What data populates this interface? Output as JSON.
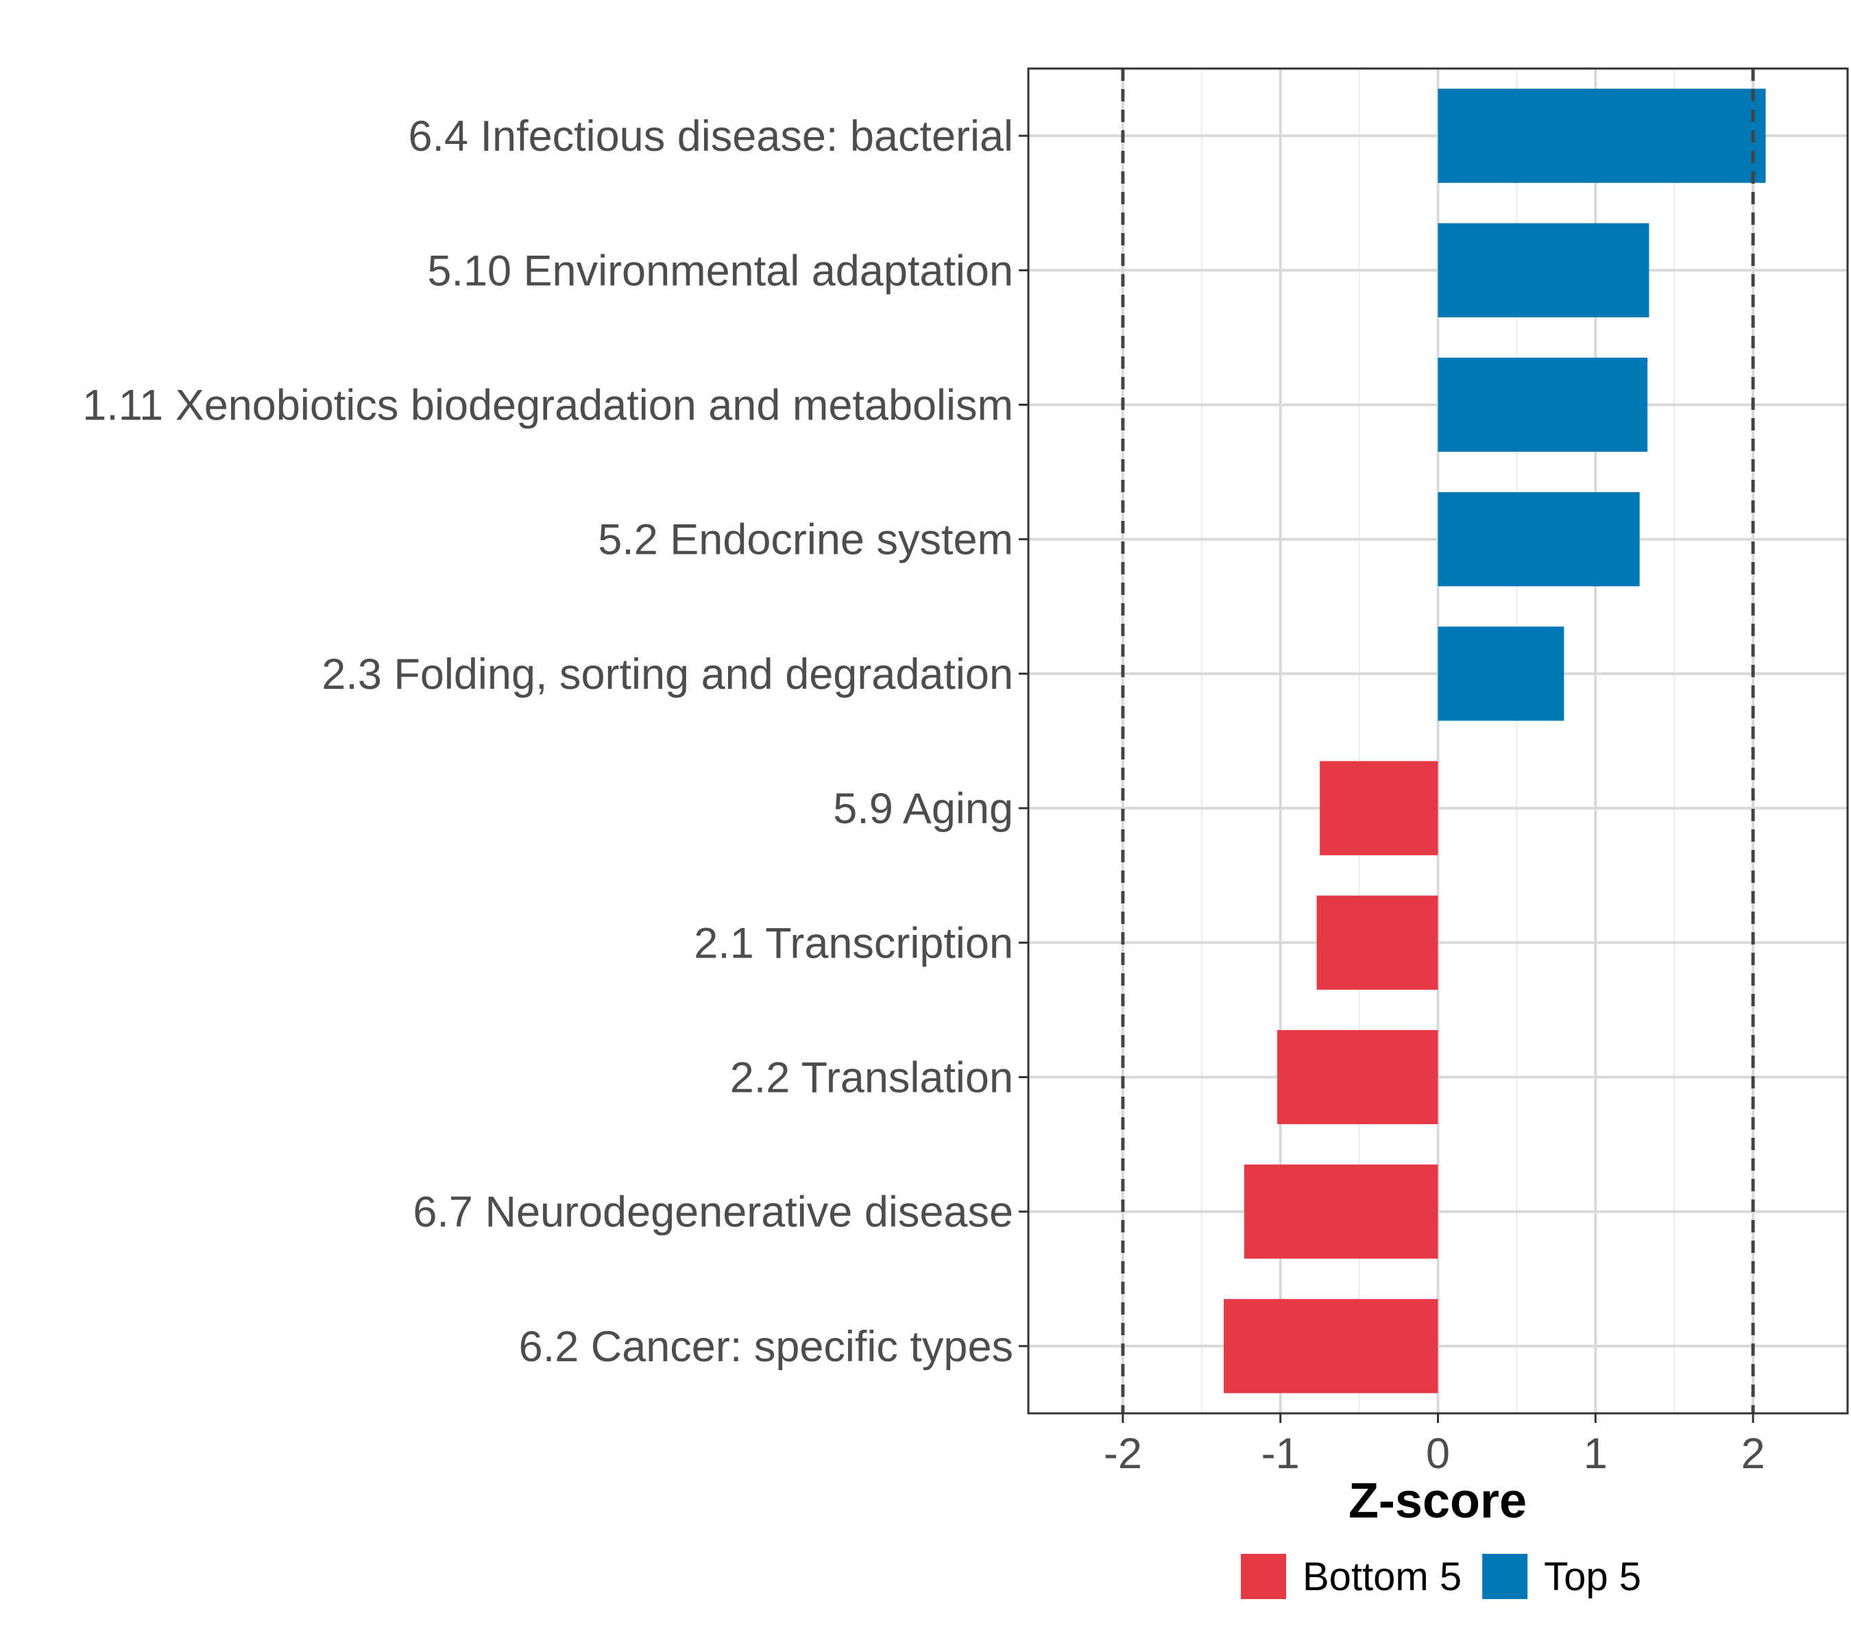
{
  "chart_data": {
    "type": "bar",
    "orientation": "horizontal",
    "title": "",
    "xlabel": "Z-score",
    "ylabel": "",
    "xlim": [
      -2.6,
      2.6
    ],
    "xticks": [
      -2,
      -1,
      0,
      1,
      2
    ],
    "xtick_labels": [
      "-2",
      "-1",
      "0",
      "1",
      "2"
    ],
    "reference_lines": [
      -2,
      2
    ],
    "grid": true,
    "colors": {
      "Bottom 5": "#e63946",
      "Top 5": "#0077b6"
    },
    "categories": [
      "6.4 Infectious disease: bacterial",
      "5.10 Environmental adaptation",
      "1.11 Xenobiotics biodegradation and metabolism",
      "5.2 Endocrine system",
      "2.3 Folding, sorting and degradation",
      "5.9 Aging",
      "2.1 Transcription",
      "2.2 Translation",
      "6.7 Neurodegenerative disease",
      "6.2 Cancer: specific types"
    ],
    "values": [
      2.08,
      1.34,
      1.33,
      1.28,
      0.8,
      -0.75,
      -0.77,
      -1.02,
      -1.23,
      -1.36
    ],
    "groups": [
      "Top 5",
      "Top 5",
      "Top 5",
      "Top 5",
      "Top 5",
      "Bottom 5",
      "Bottom 5",
      "Bottom 5",
      "Bottom 5",
      "Bottom 5"
    ],
    "legend": {
      "position": "bottom",
      "items": [
        {
          "label": "Bottom 5",
          "color": "#e63946"
        },
        {
          "label": "Top 5",
          "color": "#0077b6"
        }
      ]
    }
  }
}
